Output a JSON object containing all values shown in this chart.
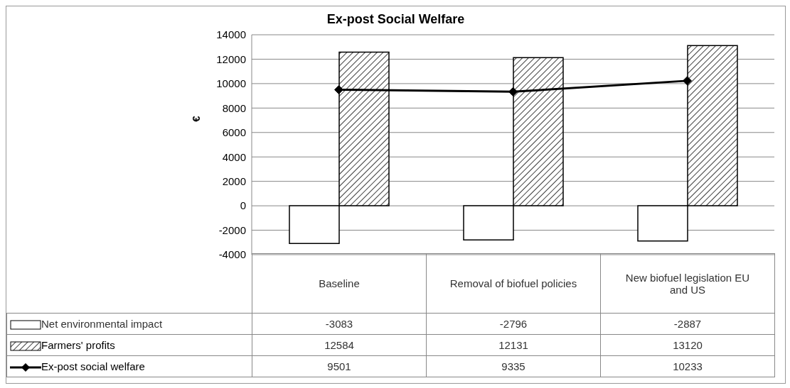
{
  "chart_data": {
    "type": "bar",
    "title": "Ex-post Social Welfare",
    "ylabel": "€",
    "categories": [
      "Baseline",
      "Removal of biofuel policies",
      "New biofuel legislation EU and US"
    ],
    "series": [
      {
        "name": "Net environmental impact",
        "color": "#ffffff",
        "values": [
          -3083,
          -2796,
          -2887
        ]
      },
      {
        "name": "Farmers' profits",
        "color": "#000000",
        "values": [
          12584,
          12131,
          13120
        ]
      },
      {
        "name": "Ex-post social welfare",
        "type": "line",
        "color": "#000000",
        "marker": "diamond",
        "values": [
          9501,
          9335,
          10233
        ]
      }
    ],
    "ylim": [
      -4000,
      14000
    ],
    "yticks": [
      -4000,
      -2000,
      0,
      2000,
      4000,
      6000,
      8000,
      10000,
      12000,
      14000
    ],
    "grid": "y",
    "legend": "bottom",
    "data_labels": true
  }
}
